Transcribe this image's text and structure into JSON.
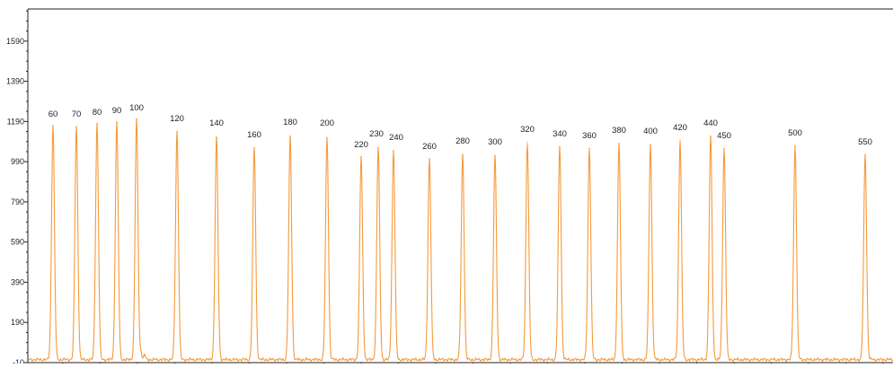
{
  "chart_data": {
    "type": "line",
    "title": "",
    "xlabel": "",
    "ylabel": "",
    "ylim": [
      -10,
      1750
    ],
    "y_ticks": [
      -10,
      190,
      390,
      590,
      790,
      990,
      1190,
      1390,
      1590
    ],
    "grid": false,
    "line_color": "#f59a3b",
    "peaks": [
      {
        "label": "60",
        "height": 1170
      },
      {
        "label": "70",
        "height": 1165
      },
      {
        "label": "80",
        "height": 1180
      },
      {
        "label": "90",
        "height": 1185
      },
      {
        "label": "100",
        "height": 1200
      },
      {
        "label": "120",
        "height": 1140
      },
      {
        "label": "140",
        "height": 1110
      },
      {
        "label": "160",
        "height": 1060
      },
      {
        "label": "180",
        "height": 1115
      },
      {
        "label": "200",
        "height": 1110
      },
      {
        "label": "220",
        "height": 1015
      },
      {
        "label": "230",
        "height": 1060
      },
      {
        "label": "240",
        "height": 1045
      },
      {
        "label": "260",
        "height": 1005
      },
      {
        "label": "280",
        "height": 1025
      },
      {
        "label": "300",
        "height": 1020
      },
      {
        "label": "320",
        "height": 1085
      },
      {
        "label": "340",
        "height": 1065
      },
      {
        "label": "360",
        "height": 1055
      },
      {
        "label": "380",
        "height": 1080
      },
      {
        "label": "400",
        "height": 1075
      },
      {
        "label": "420",
        "height": 1095
      },
      {
        "label": "440",
        "height": 1115
      },
      {
        "label": "450",
        "height": 1055
      },
      {
        "label": "500",
        "height": 1070
      },
      {
        "label": "550",
        "height": 1025
      }
    ]
  }
}
